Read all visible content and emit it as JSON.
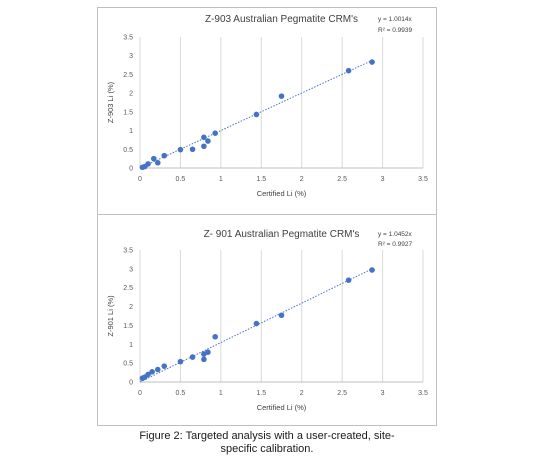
{
  "chart_data": [
    {
      "type": "scatter",
      "title": "Z-903 Australian Pegmatite CRM's",
      "xlabel": "Certified Li (%)",
      "ylabel": "Z-903 Li (%)",
      "xlim": [
        0,
        3.5
      ],
      "ylim": [
        0,
        3.5
      ],
      "xticks": [
        "0",
        "0.5",
        "1",
        "1.5",
        "2",
        "2.5",
        "3",
        "3.5"
      ],
      "yticks": [
        "0",
        "0.5",
        "1",
        "1.5",
        "2",
        "2.5",
        "3",
        "3.5"
      ],
      "grid": "vertical-only",
      "trendline": {
        "type": "linear",
        "equation": "y = 1.0014x",
        "r_squared": "R² = 0.9939",
        "slope": 1.0014
      },
      "annotation_placement": "top-right",
      "marker_color": "#4472c4",
      "points": [
        {
          "x": 0.03,
          "y": 0.02
        },
        {
          "x": 0.06,
          "y": 0.04
        },
        {
          "x": 0.1,
          "y": 0.11
        },
        {
          "x": 0.17,
          "y": 0.25
        },
        {
          "x": 0.22,
          "y": 0.14
        },
        {
          "x": 0.3,
          "y": 0.33
        },
        {
          "x": 0.5,
          "y": 0.49
        },
        {
          "x": 0.65,
          "y": 0.5
        },
        {
          "x": 0.79,
          "y": 0.58
        },
        {
          "x": 0.79,
          "y": 0.82
        },
        {
          "x": 0.84,
          "y": 0.72
        },
        {
          "x": 0.93,
          "y": 0.93
        },
        {
          "x": 1.44,
          "y": 1.43
        },
        {
          "x": 1.75,
          "y": 1.92
        },
        {
          "x": 2.58,
          "y": 2.6
        },
        {
          "x": 2.87,
          "y": 2.83
        }
      ]
    },
    {
      "type": "scatter",
      "title": "Z- 901 Australian Pegmatite CRM's",
      "xlabel": "Certified Li (%)",
      "ylabel": "Z-901 Li (%)",
      "xlim": [
        0,
        3.5
      ],
      "ylim": [
        0,
        3.5
      ],
      "xticks": [
        "0",
        "0.5",
        "1",
        "1.5",
        "2",
        "2.5",
        "3",
        "3.5"
      ],
      "yticks": [
        "0",
        "0.5",
        "1",
        "1.5",
        "2",
        "2.5",
        "3",
        "3.5"
      ],
      "grid": "vertical-only",
      "trendline": {
        "type": "linear",
        "equation": "y = 1.0452x",
        "r_squared": "R² = 0.9927",
        "slope": 1.0452
      },
      "annotation_placement": "top-right",
      "marker_color": "#4472c4",
      "points": [
        {
          "x": 0.03,
          "y": 0.1
        },
        {
          "x": 0.06,
          "y": 0.13
        },
        {
          "x": 0.1,
          "y": 0.2
        },
        {
          "x": 0.15,
          "y": 0.27
        },
        {
          "x": 0.22,
          "y": 0.33
        },
        {
          "x": 0.3,
          "y": 0.42
        },
        {
          "x": 0.5,
          "y": 0.54
        },
        {
          "x": 0.65,
          "y": 0.66
        },
        {
          "x": 0.79,
          "y": 0.6
        },
        {
          "x": 0.79,
          "y": 0.74
        },
        {
          "x": 0.84,
          "y": 0.79
        },
        {
          "x": 0.93,
          "y": 1.2
        },
        {
          "x": 1.44,
          "y": 1.55
        },
        {
          "x": 1.75,
          "y": 1.77
        },
        {
          "x": 2.58,
          "y": 2.7
        },
        {
          "x": 2.87,
          "y": 2.97
        }
      ]
    }
  ],
  "caption": {
    "line1": "Figure 2: Targeted analysis with a user-created, site-",
    "line2": "specific calibration."
  }
}
